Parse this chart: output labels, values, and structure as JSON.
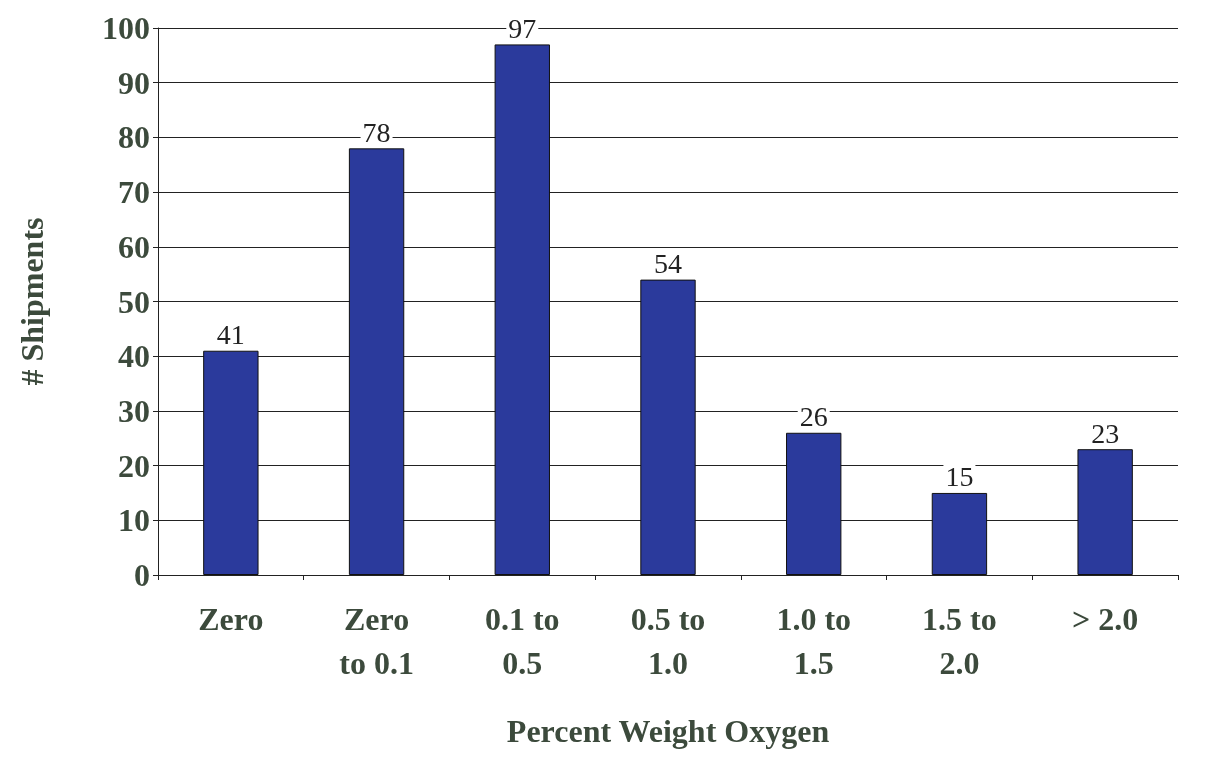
{
  "chart_data": {
    "type": "bar",
    "xlabel": "Percent Weight Oxygen",
    "ylabel": "# Shipments",
    "categories": [
      "Zero",
      "Zero\nto 0.1",
      "0.1 to\n0.5",
      "0.5 to\n1.0",
      "1.0 to\n1.5",
      "1.5 to\n2.0",
      "> 2.0"
    ],
    "values": [
      41,
      78,
      97,
      54,
      26,
      15,
      23
    ],
    "color": "#2b3a9c",
    "ylim": [
      0,
      100
    ],
    "yticks": [
      0,
      10,
      20,
      30,
      40,
      50,
      60,
      70,
      80,
      90,
      100
    ],
    "grid": "y",
    "data_labels": true
  }
}
